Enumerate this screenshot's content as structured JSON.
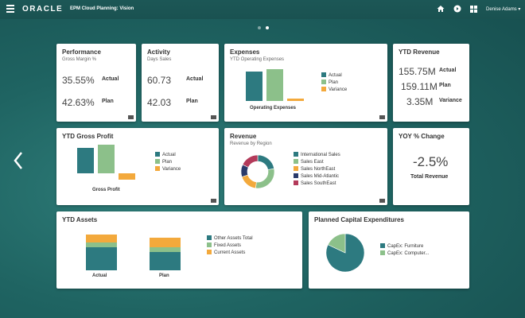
{
  "header": {
    "brand": "ORACLE",
    "app_title": "EPM Cloud Planning: Vision",
    "user_name": "Denise Adams ▾"
  },
  "colors": {
    "actual": "#2d7a80",
    "plan": "#8cc08a",
    "variance": "#f3a93c",
    "header": "#1c5756"
  },
  "cards": {
    "performance": {
      "title": "Performance",
      "subtitle": "Gross Margin %",
      "rows": [
        {
          "value": "35.55%",
          "label": "Actual"
        },
        {
          "value": "42.63%",
          "label": "Plan"
        }
      ]
    },
    "activity": {
      "title": "Activity",
      "subtitle": "Days Sales",
      "rows": [
        {
          "value": "60.73",
          "label": "Actual"
        },
        {
          "value": "42.03",
          "label": "Plan"
        }
      ]
    },
    "expenses": {
      "title": "Expenses",
      "subtitle": "YTD Operating Expenses",
      "axis_label": "Operating Expenses",
      "legend": [
        "Actual",
        "Plan",
        "Variance"
      ]
    },
    "ytd_revenue": {
      "title": "YTD Revenue",
      "rows": [
        {
          "value": "155.75M",
          "label": "Actual"
        },
        {
          "value": "159.11M",
          "label": "Plan"
        },
        {
          "value": "3.35M",
          "label": "Variance"
        }
      ]
    },
    "ytd_gross_profit": {
      "title": "YTD Gross Profit",
      "axis_label": "Gross Profit",
      "legend": [
        "Actual",
        "Plan",
        "Variance"
      ]
    },
    "revenue": {
      "title": "Revenue",
      "subtitle": "Revenue by Region",
      "legend": [
        "International Sales",
        "Sales East",
        "Sales NorthEast",
        "Sales Mid-Atlantic",
        "Sales SouthEast"
      ]
    },
    "yoy_change": {
      "title": "YOY % Change",
      "value": "-2.5%",
      "label": "Total Revenue"
    },
    "ytd_assets": {
      "title": "YTD Assets",
      "categories": [
        "Actual",
        "Plan"
      ],
      "legend": [
        "Other Assets Total",
        "Fixed Assets",
        "Current Assets"
      ]
    },
    "capex": {
      "title": "Planned Capital Expenditures",
      "legend": [
        "CapEx: Furniture",
        "CapEx: Computer..."
      ]
    }
  },
  "chart_data": [
    {
      "type": "bar",
      "title": "Expenses",
      "categories": [
        "Operating Expenses"
      ],
      "series": [
        {
          "name": "Actual",
          "values": [
            100
          ]
        },
        {
          "name": "Plan",
          "values": [
            110
          ]
        },
        {
          "name": "Variance",
          "values": [
            8
          ]
        }
      ],
      "ylim": [
        0,
        120
      ]
    },
    {
      "type": "bar",
      "title": "YTD Gross Profit",
      "categories": [
        "Gross Profit"
      ],
      "series": [
        {
          "name": "Actual",
          "values": [
            88
          ]
        },
        {
          "name": "Plan",
          "values": [
            100
          ]
        },
        {
          "name": "Variance",
          "values": [
            20
          ]
        }
      ],
      "ylim": [
        0,
        110
      ]
    },
    {
      "type": "pie",
      "title": "Revenue",
      "donut": true,
      "categories": [
        "International Sales",
        "Sales East",
        "Sales NorthEast",
        "Sales Mid-Atlantic",
        "Sales SouthEast"
      ],
      "values": [
        22,
        30,
        18,
        12,
        18
      ]
    },
    {
      "type": "bar",
      "title": "YTD Assets",
      "stacked": true,
      "categories": [
        "Actual",
        "Plan"
      ],
      "series": [
        {
          "name": "Other Assets Total",
          "values": [
            60,
            48
          ]
        },
        {
          "name": "Fixed Assets",
          "values": [
            12,
            12
          ]
        },
        {
          "name": "Current Assets",
          "values": [
            22,
            26
          ]
        }
      ],
      "ylim": [
        0,
        100
      ]
    },
    {
      "type": "pie",
      "title": "Planned Capital Expenditures",
      "categories": [
        "CapEx: Furniture",
        "CapEx: Computer..."
      ],
      "values": [
        82,
        18
      ]
    }
  ]
}
